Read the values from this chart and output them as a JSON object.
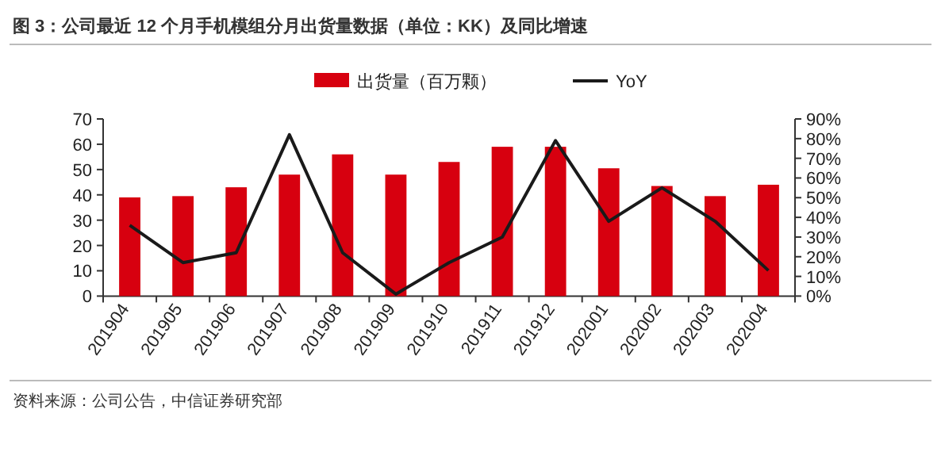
{
  "chart_data": {
    "type": "bar",
    "title": "图 3：公司最近 12 个月手机模组分月出货量数据（单位：KK）及同比增速",
    "categories": [
      "201904",
      "201905",
      "201906",
      "201907",
      "201908",
      "201909",
      "201910",
      "201911",
      "201912",
      "202001",
      "202002",
      "202003",
      "202004"
    ],
    "series": [
      {
        "name": "出货量（百万颗）",
        "color": "#d7000f",
        "values": [
          39,
          39.5,
          43,
          48,
          56,
          48,
          53,
          59,
          59,
          50.5,
          43.5,
          39.5,
          44
        ]
      },
      {
        "name": "YoY",
        "type": "line",
        "axis": "y2",
        "color": "#1a1a1a",
        "values": [
          36,
          17,
          22,
          82,
          22,
          1,
          17,
          30,
          79,
          38,
          55,
          38,
          13
        ]
      }
    ],
    "ylim": [
      0,
      70
    ],
    "yticks": [
      0,
      10,
      20,
      30,
      40,
      50,
      60,
      70
    ],
    "y2lim": [
      0,
      90
    ],
    "y2ticks": [
      {
        "value": 0,
        "label": "0%"
      },
      {
        "value": 10,
        "label": "10%"
      },
      {
        "value": 20,
        "label": "20%"
      },
      {
        "value": 30,
        "label": "30%"
      },
      {
        "value": 40,
        "label": "40%"
      },
      {
        "value": 50,
        "label": "50%"
      },
      {
        "value": 60,
        "label": "60%"
      },
      {
        "value": 70,
        "label": "70%"
      },
      {
        "value": 80,
        "label": "80%"
      },
      {
        "value": 90,
        "label": "90%"
      }
    ],
    "legend": "top",
    "grid": false,
    "annotations": [
      "资料来源：公司公告，中信证券研究部"
    ]
  }
}
